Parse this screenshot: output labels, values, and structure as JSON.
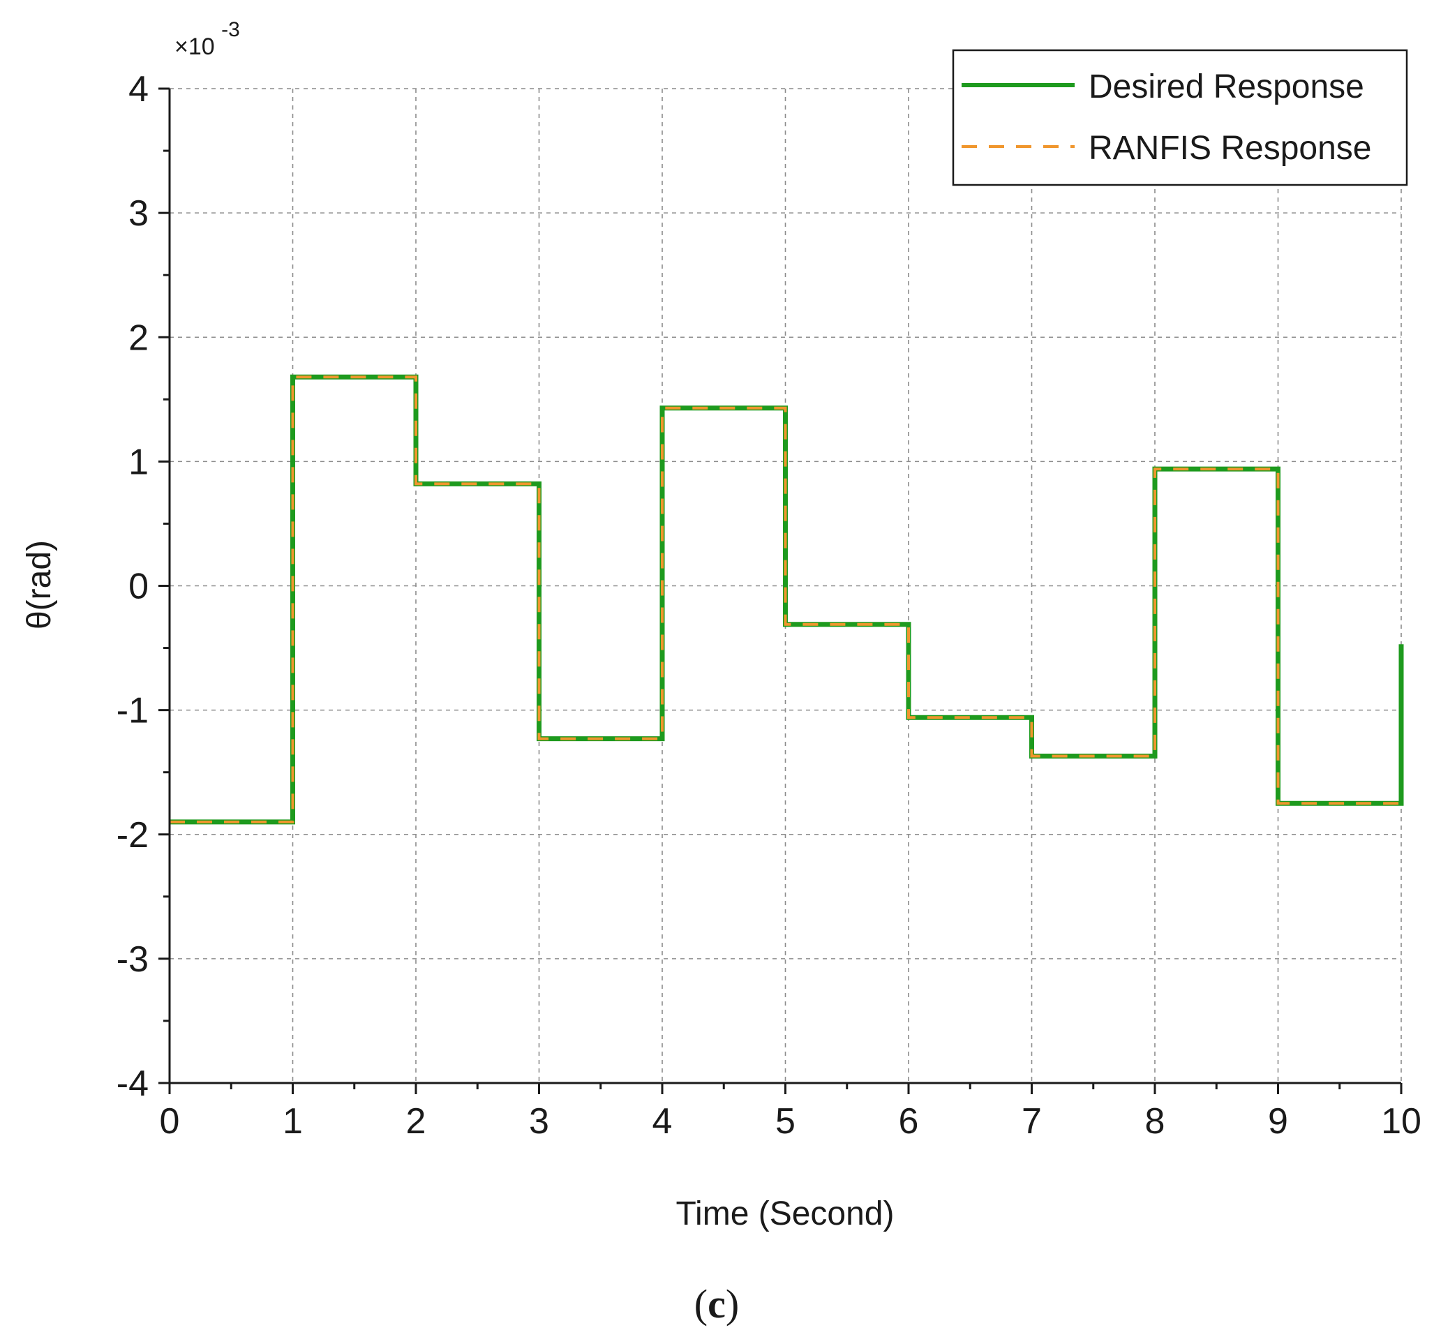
{
  "chart_data": {
    "type": "line",
    "title": "",
    "xlabel": "Time (Second)",
    "ylabel": "θ(rad)",
    "xlim": [
      0,
      10
    ],
    "ylim": [
      -4,
      4
    ],
    "y_scale_multiplier": "×10",
    "y_scale_exponent": "-3",
    "x_ticks": [
      "0",
      "1",
      "2",
      "3",
      "4",
      "5",
      "6",
      "7",
      "8",
      "9",
      "10"
    ],
    "y_ticks": [
      "-4",
      "-3",
      "-2",
      "-1",
      "0",
      "1",
      "2",
      "3",
      "4"
    ],
    "grid": true,
    "legend_position": "top-right",
    "panel_label_open": "(",
    "panel_label_letter": "c",
    "panel_label_close": ")",
    "series": [
      {
        "name": "Desired Response",
        "color": "#1e9a1e",
        "style": "solid",
        "x": [
          0,
          1,
          1,
          2,
          2,
          3,
          3,
          4,
          4,
          5,
          5,
          6,
          6,
          7,
          7,
          8,
          8,
          9,
          9,
          10,
          10
        ],
        "y": [
          -1.9,
          -1.9,
          1.68,
          1.68,
          0.82,
          0.82,
          -1.23,
          -1.23,
          1.43,
          1.43,
          -0.31,
          -0.31,
          -1.06,
          -1.06,
          -1.37,
          -1.37,
          0.94,
          0.94,
          -1.75,
          -1.75,
          -0.47
        ]
      },
      {
        "name": "RANFIS Response",
        "color": "#f0962d",
        "style": "dashed",
        "x": [
          0,
          1,
          1,
          2,
          2,
          3,
          3,
          4,
          4,
          5,
          5,
          6,
          6,
          7,
          7,
          8,
          8,
          9,
          9,
          10
        ],
        "y": [
          -1.9,
          -1.9,
          1.68,
          1.68,
          0.82,
          0.82,
          -1.23,
          -1.23,
          1.43,
          1.43,
          -0.31,
          -0.31,
          -1.06,
          -1.06,
          -1.37,
          -1.37,
          0.94,
          0.94,
          -1.75,
          -1.75
        ]
      }
    ]
  }
}
